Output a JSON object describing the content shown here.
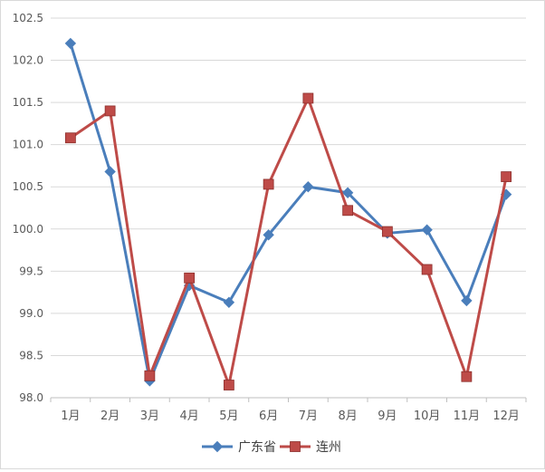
{
  "chart_data": {
    "type": "line",
    "categories": [
      "1月",
      "2月",
      "3月",
      "4月",
      "5月",
      "6月",
      "7月",
      "8月",
      "9月",
      "10月",
      "11月",
      "12月"
    ],
    "ylim": [
      98.0,
      102.5
    ],
    "yticks": [
      "98.0",
      "98.5",
      "99.0",
      "99.5",
      "100.0",
      "100.5",
      "101.0",
      "101.5",
      "102.0",
      "102.5"
    ],
    "grid": true,
    "legend_position": "bottom",
    "series": [
      {
        "name": "广东省",
        "color": "#4a7ebb",
        "marker": "diamond",
        "values": [
          102.2,
          100.68,
          98.2,
          99.33,
          99.13,
          99.93,
          100.5,
          100.43,
          99.95,
          99.99,
          99.15,
          100.41
        ]
      },
      {
        "name": "连州",
        "color": "#be4b48",
        "marker": "square",
        "values": [
          101.08,
          101.4,
          98.26,
          99.42,
          98.15,
          100.53,
          101.55,
          100.22,
          99.97,
          99.52,
          98.25,
          100.62
        ]
      }
    ]
  }
}
